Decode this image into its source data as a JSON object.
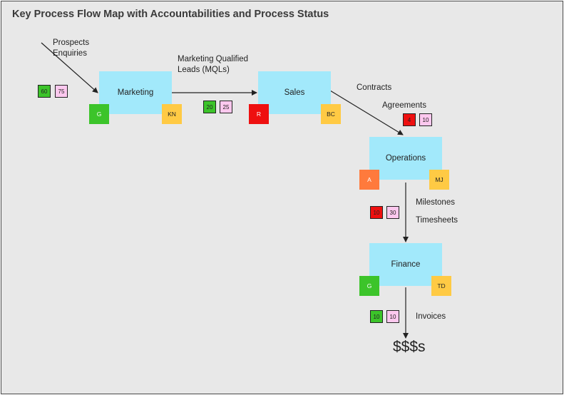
{
  "title": "Key Process Flow Map with Accountabilities and Process Status",
  "colors": {
    "process_fill": "#a2e9fb",
    "status_green": "#3cc42a",
    "status_red": "#ee1010",
    "status_amber": "#ff7a3c",
    "owner_yellow": "#ffca44",
    "target_pink": "#fcc8ee"
  },
  "processes": {
    "marketing": {
      "label": "Marketing",
      "status": "G",
      "owner": "KN"
    },
    "sales": {
      "label": "Sales",
      "status": "R",
      "owner": "BC"
    },
    "operations": {
      "label": "Operations",
      "status": "A",
      "owner": "MJ"
    },
    "finance": {
      "label": "Finance",
      "status": "G",
      "owner": "TD"
    }
  },
  "flows": {
    "prospects": {
      "line1": "Prospects",
      "line2": "Enquiries",
      "actual": "60",
      "target": "75"
    },
    "mqls": {
      "line1": "Marketing Qualified",
      "line2": "Leads (MQLs)",
      "actual": "20",
      "target": "25"
    },
    "contracts": {
      "line1": "Contracts",
      "line2": "Agreements",
      "actual": "4",
      "target": "10"
    },
    "milestones": {
      "line1": "Milestones",
      "line2": "Timesheets",
      "actual": "10",
      "target": "30"
    },
    "invoices": {
      "line1": "Invoices",
      "actual": "10",
      "target": "10"
    }
  },
  "outcome": "$$$s"
}
